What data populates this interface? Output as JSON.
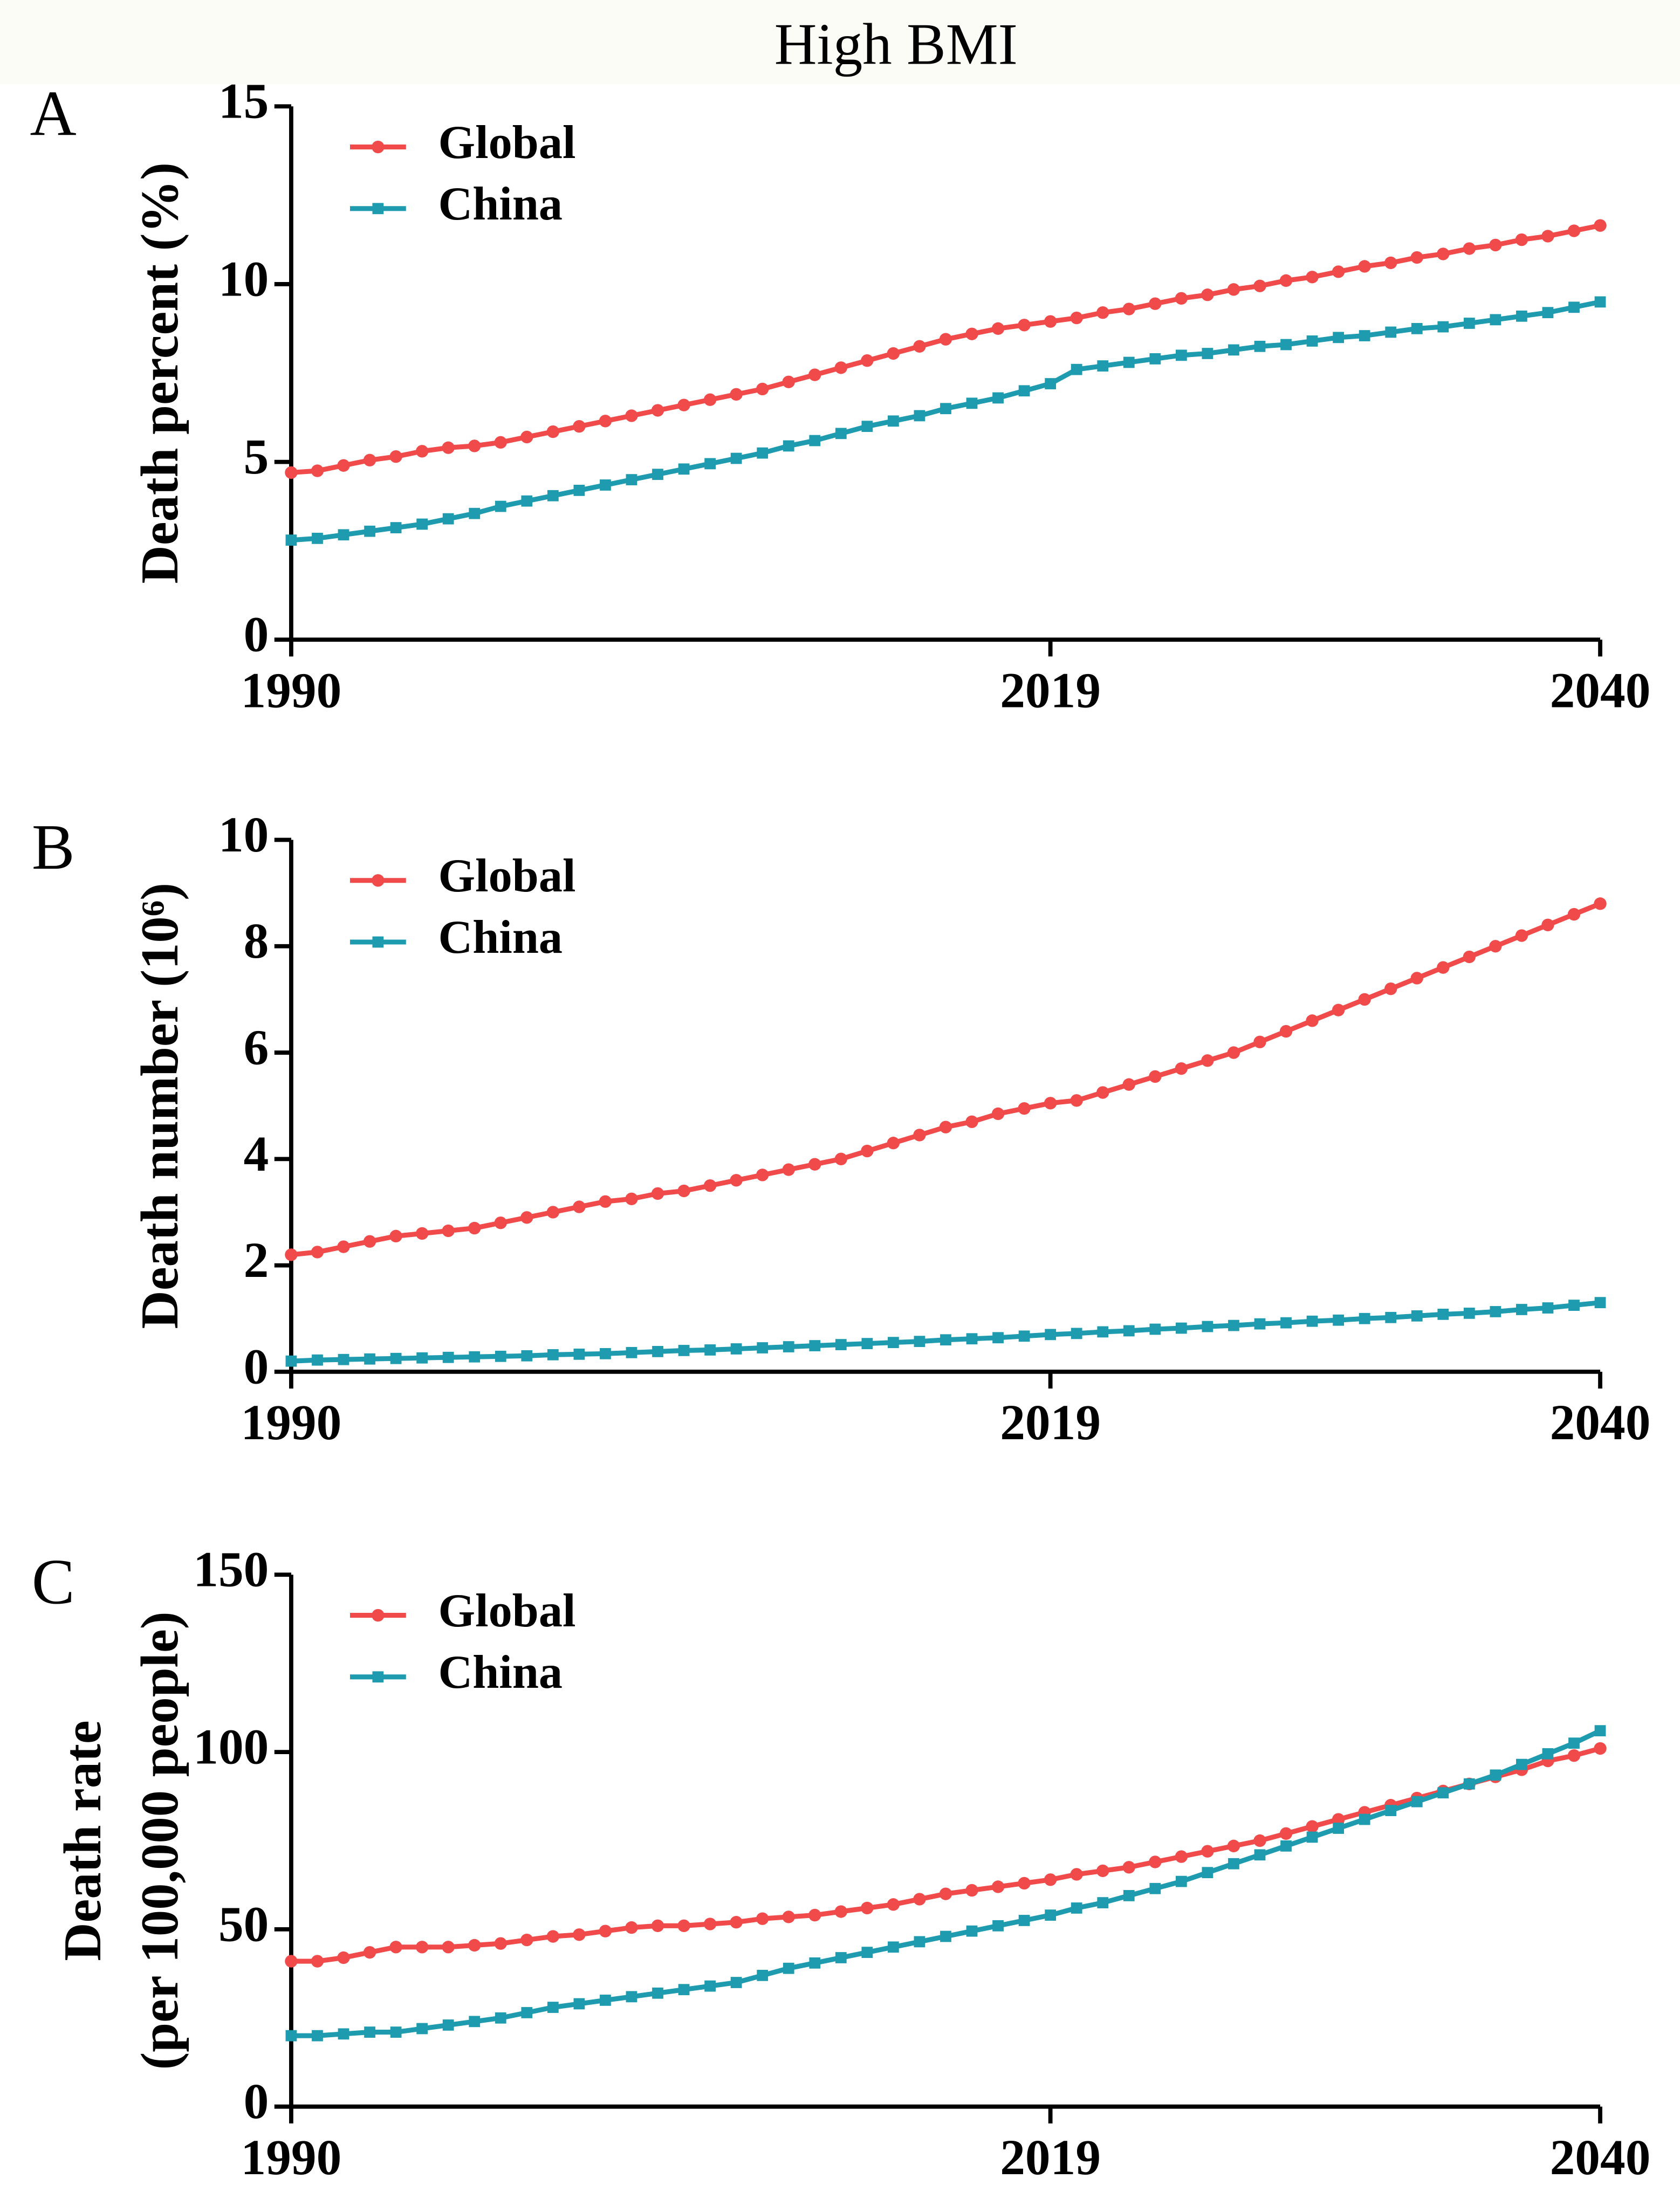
{
  "title": "High BMI",
  "chart_data": [
    {
      "type": "line",
      "panel_label": "A",
      "ylabel": [
        "Death percent (%)"
      ],
      "x": [
        1990,
        1991,
        1992,
        1993,
        1994,
        1995,
        1996,
        1997,
        1998,
        1999,
        2000,
        2001,
        2002,
        2003,
        2004,
        2005,
        2006,
        2007,
        2008,
        2009,
        2010,
        2011,
        2012,
        2013,
        2014,
        2015,
        2016,
        2017,
        2018,
        2019,
        2020,
        2021,
        2022,
        2023,
        2024,
        2025,
        2026,
        2027,
        2028,
        2029,
        2030,
        2031,
        2032,
        2033,
        2034,
        2035,
        2036,
        2037,
        2038,
        2039,
        2040
      ],
      "xlim": [
        1990,
        2040
      ],
      "xticks": [
        1990,
        2019,
        2040
      ],
      "ylim": [
        0,
        15
      ],
      "yticks": [
        0,
        5,
        10,
        15
      ],
      "legend": "upper left",
      "series": [
        {
          "name": "Global",
          "color": "#f04a4a",
          "marker": "circle",
          "values": [
            4.7,
            4.75,
            4.9,
            5.05,
            5.15,
            5.3,
            5.4,
            5.45,
            5.55,
            5.7,
            5.85,
            6.0,
            6.15,
            6.3,
            6.45,
            6.6,
            6.75,
            6.9,
            7.05,
            7.25,
            7.45,
            7.65,
            7.85,
            8.05,
            8.25,
            8.45,
            8.6,
            8.75,
            8.85,
            8.95,
            9.05,
            9.2,
            9.3,
            9.45,
            9.6,
            9.7,
            9.85,
            9.95,
            10.1,
            10.2,
            10.35,
            10.5,
            10.6,
            10.75,
            10.85,
            11.0,
            11.1,
            11.25,
            11.35,
            11.5,
            11.65
          ]
        },
        {
          "name": "China",
          "color": "#1f9bb0",
          "marker": "square",
          "values": [
            2.8,
            2.85,
            2.95,
            3.05,
            3.15,
            3.25,
            3.4,
            3.55,
            3.75,
            3.9,
            4.05,
            4.2,
            4.35,
            4.5,
            4.65,
            4.8,
            4.95,
            5.1,
            5.25,
            5.45,
            5.6,
            5.8,
            6.0,
            6.15,
            6.3,
            6.5,
            6.65,
            6.8,
            7.0,
            7.2,
            7.6,
            7.7,
            7.8,
            7.9,
            8.0,
            8.05,
            8.15,
            8.25,
            8.3,
            8.4,
            8.5,
            8.55,
            8.65,
            8.75,
            8.8,
            8.9,
            9.0,
            9.1,
            9.2,
            9.35,
            9.5
          ]
        }
      ]
    },
    {
      "type": "line",
      "panel_label": "B",
      "ylabel": [
        "Death number (10⁶)"
      ],
      "x": [
        1990,
        1991,
        1992,
        1993,
        1994,
        1995,
        1996,
        1997,
        1998,
        1999,
        2000,
        2001,
        2002,
        2003,
        2004,
        2005,
        2006,
        2007,
        2008,
        2009,
        2010,
        2011,
        2012,
        2013,
        2014,
        2015,
        2016,
        2017,
        2018,
        2019,
        2020,
        2021,
        2022,
        2023,
        2024,
        2025,
        2026,
        2027,
        2028,
        2029,
        2030,
        2031,
        2032,
        2033,
        2034,
        2035,
        2036,
        2037,
        2038,
        2039,
        2040
      ],
      "xlim": [
        1990,
        2040
      ],
      "xticks": [
        1990,
        2019,
        2040
      ],
      "ylim": [
        0,
        10
      ],
      "yticks": [
        0,
        2,
        4,
        6,
        8,
        10
      ],
      "legend": "upper left",
      "series": [
        {
          "name": "Global",
          "color": "#f04a4a",
          "marker": "circle",
          "values": [
            2.2,
            2.25,
            2.35,
            2.45,
            2.55,
            2.6,
            2.65,
            2.7,
            2.8,
            2.9,
            3.0,
            3.1,
            3.2,
            3.25,
            3.35,
            3.4,
            3.5,
            3.6,
            3.7,
            3.8,
            3.9,
            4.0,
            4.15,
            4.3,
            4.45,
            4.6,
            4.7,
            4.85,
            4.95,
            5.05,
            5.1,
            5.25,
            5.4,
            5.55,
            5.7,
            5.85,
            6.0,
            6.2,
            6.4,
            6.6,
            6.8,
            7.0,
            7.2,
            7.4,
            7.6,
            7.8,
            8.0,
            8.2,
            8.4,
            8.6,
            8.8
          ]
        },
        {
          "name": "China",
          "color": "#1f9bb0",
          "marker": "square",
          "values": [
            0.2,
            0.22,
            0.23,
            0.24,
            0.25,
            0.26,
            0.27,
            0.28,
            0.29,
            0.3,
            0.32,
            0.33,
            0.34,
            0.36,
            0.38,
            0.4,
            0.41,
            0.43,
            0.45,
            0.47,
            0.49,
            0.51,
            0.53,
            0.55,
            0.57,
            0.6,
            0.62,
            0.64,
            0.67,
            0.7,
            0.72,
            0.75,
            0.77,
            0.8,
            0.82,
            0.85,
            0.87,
            0.9,
            0.92,
            0.95,
            0.97,
            1.0,
            1.02,
            1.05,
            1.08,
            1.1,
            1.13,
            1.17,
            1.2,
            1.25,
            1.3
          ]
        }
      ]
    },
    {
      "type": "line",
      "panel_label": "C",
      "ylabel": [
        "Death rate",
        "(per 100,000 people)"
      ],
      "x": [
        1990,
        1991,
        1992,
        1993,
        1994,
        1995,
        1996,
        1997,
        1998,
        1999,
        2000,
        2001,
        2002,
        2003,
        2004,
        2005,
        2006,
        2007,
        2008,
        2009,
        2010,
        2011,
        2012,
        2013,
        2014,
        2015,
        2016,
        2017,
        2018,
        2019,
        2020,
        2021,
        2022,
        2023,
        2024,
        2025,
        2026,
        2027,
        2028,
        2029,
        2030,
        2031,
        2032,
        2033,
        2034,
        2035,
        2036,
        2037,
        2038,
        2039,
        2040
      ],
      "xlim": [
        1990,
        2040
      ],
      "xticks": [
        1990,
        2019,
        2040
      ],
      "ylim": [
        0,
        150
      ],
      "yticks": [
        0,
        50,
        100,
        150
      ],
      "legend": "upper left",
      "series": [
        {
          "name": "Global",
          "color": "#f04a4a",
          "marker": "circle",
          "values": [
            41,
            41,
            42,
            43.5,
            45,
            45,
            45,
            45.5,
            46,
            47,
            48,
            48.5,
            49.5,
            50.5,
            51,
            51,
            51.5,
            52,
            53,
            53.5,
            54,
            55,
            56,
            57,
            58.5,
            60,
            61,
            62,
            63,
            64,
            65.5,
            66.5,
            67.5,
            69,
            70.5,
            72,
            73.5,
            75,
            77,
            79,
            81,
            83,
            85,
            87,
            89,
            91,
            93,
            95,
            97.5,
            99,
            101
          ]
        },
        {
          "name": "China",
          "color": "#1f9bb0",
          "marker": "square",
          "values": [
            20,
            20,
            20.5,
            21,
            21,
            22,
            23,
            24,
            25,
            26.5,
            28,
            29,
            30,
            31,
            32,
            33,
            34,
            35,
            37,
            39,
            40.5,
            42,
            43.5,
            45,
            46.5,
            48,
            49.5,
            51,
            52.5,
            54,
            56,
            57.5,
            59.5,
            61.5,
            63.5,
            66,
            68.5,
            71,
            73.5,
            76,
            78.5,
            81,
            83.5,
            86,
            88.5,
            91,
            93.5,
            96.5,
            99.5,
            102.5,
            106
          ]
        }
      ]
    }
  ]
}
